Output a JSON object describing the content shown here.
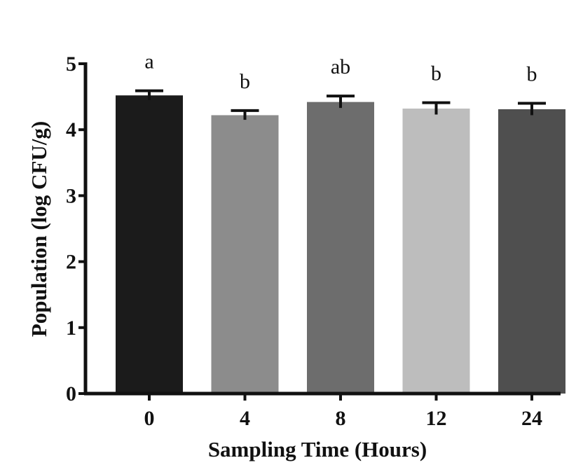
{
  "chart_data": {
    "type": "bar",
    "categories": [
      "0",
      "4",
      "8",
      "12",
      "24"
    ],
    "values": [
      4.52,
      4.22,
      4.42,
      4.32,
      4.31
    ],
    "errors": [
      0.07,
      0.07,
      0.09,
      0.09,
      0.09
    ],
    "significance_labels": [
      "a",
      "b",
      "ab",
      "b",
      "b"
    ],
    "bar_colors": [
      "#1b1b1b",
      "#8c8c8c",
      "#6d6d6d",
      "#bdbdbd",
      "#4f4f4f"
    ],
    "xlabel": "Sampling Time (Hours)",
    "ylabel": "Population (log CFU/g)",
    "ylim": [
      0,
      5
    ],
    "yticks": [
      "0",
      "1",
      "2",
      "3",
      "4",
      "5"
    ],
    "grid": false,
    "legend": "none"
  }
}
